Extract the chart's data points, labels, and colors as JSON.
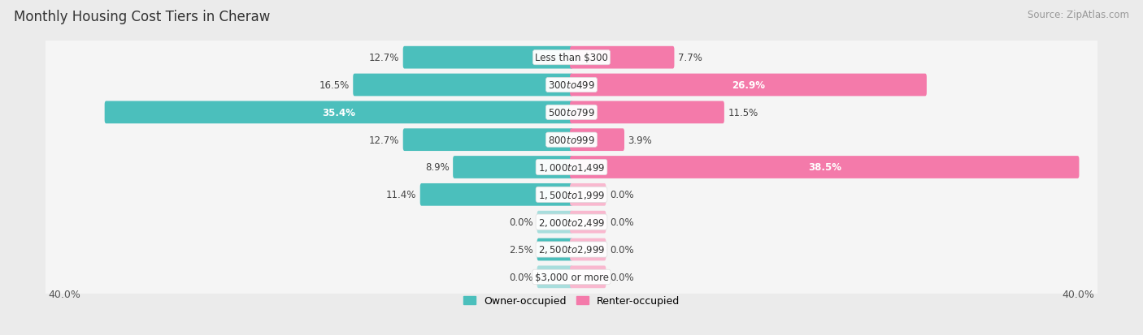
{
  "title": "Monthly Housing Cost Tiers in Cheraw",
  "source": "Source: ZipAtlas.com",
  "categories": [
    "Less than $300",
    "$300 to $499",
    "$500 to $799",
    "$800 to $999",
    "$1,000 to $1,499",
    "$1,500 to $1,999",
    "$2,000 to $2,499",
    "$2,500 to $2,999",
    "$3,000 or more"
  ],
  "owner_values": [
    12.7,
    16.5,
    35.4,
    12.7,
    8.9,
    11.4,
    0.0,
    2.5,
    0.0
  ],
  "renter_values": [
    7.7,
    26.9,
    11.5,
    3.9,
    38.5,
    0.0,
    0.0,
    0.0,
    0.0
  ],
  "owner_color": "#4bbfbc",
  "renter_color": "#f47aaa",
  "owner_color_light": "#a8dedd",
  "renter_color_light": "#f9b8cf",
  "background_color": "#ebebeb",
  "row_color": "#f5f5f5",
  "axis_max": 40.0,
  "title_fontsize": 12,
  "source_fontsize": 8.5,
  "bar_label_fontsize": 8.5,
  "cat_label_fontsize": 8.5,
  "stub_min": 2.5
}
